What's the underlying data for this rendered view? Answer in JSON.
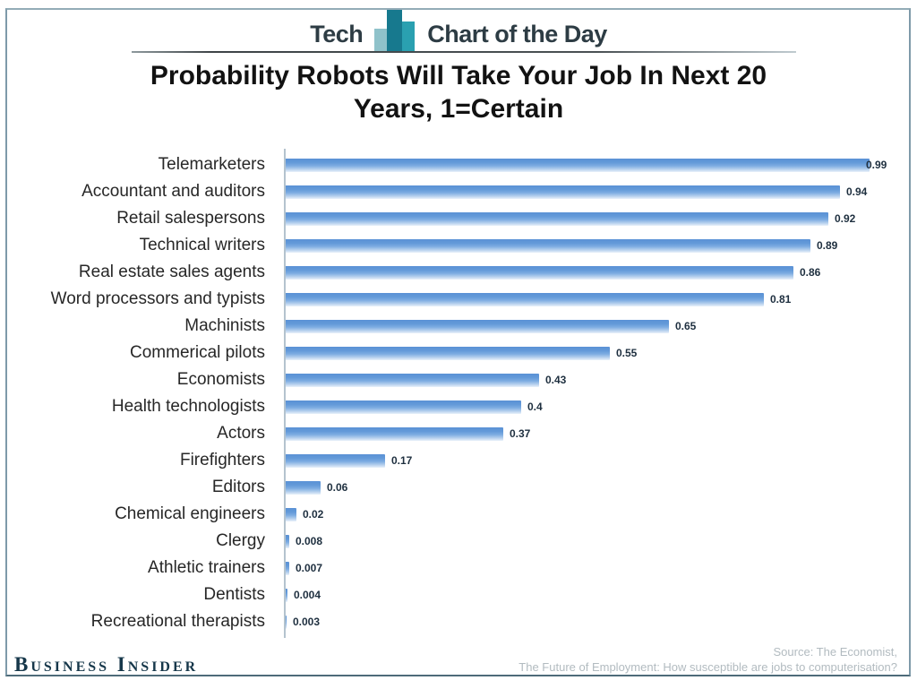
{
  "header": {
    "brand_left": "Tech",
    "brand_right": "Chart of the Day",
    "icon_colors": {
      "light": "#8fc2ca",
      "dark": "#17798e",
      "medium": "#2aa0b0"
    },
    "text_color": "#2d3c44"
  },
  "chart_data": {
    "type": "bar",
    "orientation": "horizontal",
    "title": "Probability Robots Will Take Your Job In Next 20 Years, 1=Certain",
    "title_lines": [
      "Probability Robots Will Take Your Job In Next 20",
      "Years, 1=Certain"
    ],
    "categories": [
      "Telemarketers",
      "Accountant and auditors",
      "Retail salespersons",
      "Technical writers",
      "Real estate sales agents",
      "Word processors and typists",
      "Machinists",
      "Commerical pilots",
      "Economists",
      "Health technologists",
      "Actors",
      "Firefighters",
      "Editors",
      "Chemical engineers",
      "Clergy",
      "Athletic trainers",
      "Dentists",
      "Recreational therapists"
    ],
    "values": [
      0.99,
      0.94,
      0.92,
      0.89,
      0.86,
      0.81,
      0.65,
      0.55,
      0.43,
      0.4,
      0.37,
      0.17,
      0.06,
      0.02,
      0.008,
      0.007,
      0.004,
      0.003
    ],
    "value_labels": [
      "0.99",
      "0.94",
      "0.92",
      "0.89",
      "0.86",
      "0.81",
      "0.65",
      "0.55",
      "0.43",
      "0.4",
      "0.37",
      "0.17",
      "0.06",
      "0.02",
      "0.008",
      "0.007",
      "0.004",
      "0.003"
    ],
    "xlim": [
      0,
      1
    ],
    "xlabel": "",
    "ylabel": "",
    "grid": false,
    "legend": false,
    "bar_color": "#5e93d7",
    "axis_color": "#b4c3ce",
    "value_label_color": "#1e2f3f"
  },
  "footer": {
    "logo": "Business Insider",
    "logo_color": "#16374a",
    "source_lines": [
      "Source: The Economist,",
      "The Future of Employment: How susceptible are jobs to computerisation?"
    ]
  }
}
